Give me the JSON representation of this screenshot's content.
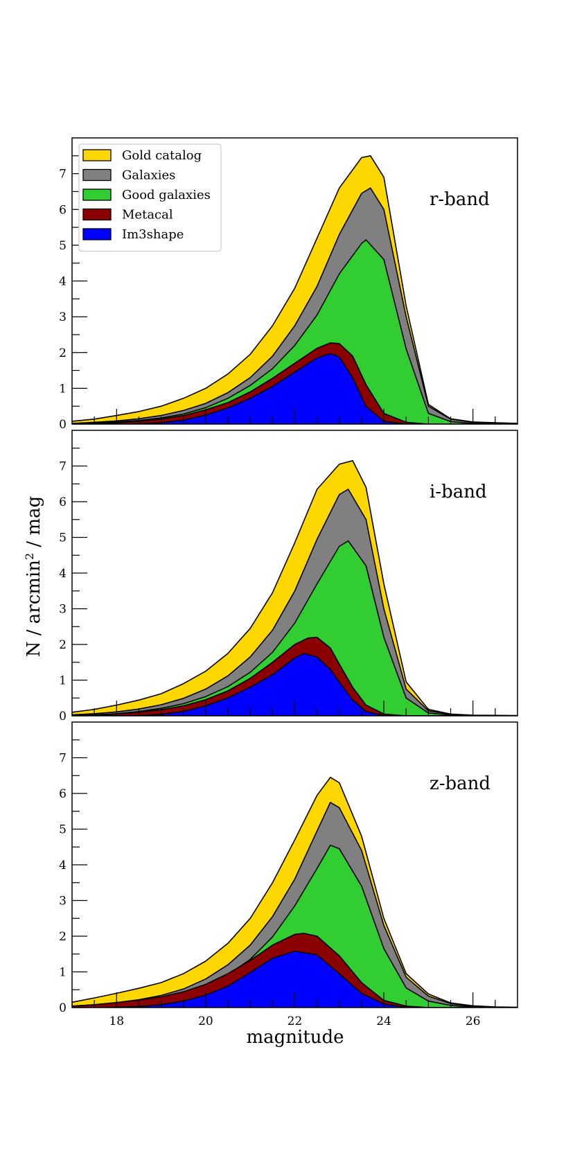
{
  "chart_data": {
    "type": "area",
    "xlabel": "magnitude",
    "ylabel": "N / arcmin² / mag",
    "ylabel_parts": {
      "prefix": "N / arcmin",
      "sup": "2",
      "suffix": " / mag"
    },
    "xlim": [
      17,
      27
    ],
    "ylim": [
      0,
      8
    ],
    "x_ticks": [
      18,
      20,
      22,
      24,
      26
    ],
    "y_ticks": [
      0,
      1,
      2,
      3,
      4,
      5,
      6,
      7
    ],
    "legend": {
      "position": "top-left",
      "entries": [
        "Gold catalog",
        "Galaxies",
        "Good galaxies",
        "Metacal",
        "Im3shape"
      ]
    },
    "colors": {
      "Gold catalog": "#FFD700",
      "Galaxies": "#808080",
      "Good galaxies": "#32CD32",
      "Metacal": "#8B0000",
      "Im3shape": "#0000FF"
    },
    "panels": [
      {
        "band": "r-band",
        "series": [
          {
            "name": "Gold catalog",
            "x": [
              17,
              17.5,
              18,
              18.5,
              19,
              19.5,
              20,
              20.5,
              21,
              21.5,
              22,
              22.5,
              23,
              23.5,
              23.7,
              24,
              24.5,
              25,
              25.5,
              26,
              27
            ],
            "values": [
              0.08,
              0.14,
              0.24,
              0.35,
              0.5,
              0.72,
              1.0,
              1.4,
              1.95,
              2.75,
              3.8,
              5.2,
              6.6,
              7.45,
              7.5,
              6.9,
              3.3,
              0.55,
              0.15,
              0.06,
              0.02
            ]
          },
          {
            "name": "Galaxies",
            "x": [
              17,
              17.5,
              18,
              18.5,
              19,
              19.5,
              20,
              20.5,
              21,
              21.5,
              22,
              22.5,
              23,
              23.5,
              23.7,
              24,
              24.5,
              25,
              25.5,
              26,
              27
            ],
            "values": [
              0.02,
              0.05,
              0.09,
              0.15,
              0.24,
              0.38,
              0.58,
              0.88,
              1.3,
              1.9,
              2.75,
              3.85,
              5.3,
              6.45,
              6.6,
              6.0,
              3.0,
              0.5,
              0.14,
              0.05,
              0.02
            ]
          },
          {
            "name": "Good galaxies",
            "x": [
              17,
              17.5,
              18,
              18.5,
              19,
              19.5,
              20,
              20.5,
              21,
              21.5,
              22,
              22.5,
              23,
              23.5,
              23.6,
              24,
              24.5,
              25,
              25.5,
              26,
              27
            ],
            "values": [
              0.01,
              0.03,
              0.06,
              0.1,
              0.17,
              0.28,
              0.46,
              0.72,
              1.08,
              1.55,
              2.2,
              3.05,
              4.2,
              5.05,
              5.15,
              4.6,
              2.1,
              0.3,
              0.07,
              0.02,
              0.01
            ]
          },
          {
            "name": "Metacal",
            "x": [
              17,
              17.5,
              18,
              18.5,
              19,
              19.5,
              20,
              20.5,
              21,
              21.5,
              22,
              22.5,
              22.8,
              23,
              23.3,
              23.6,
              24,
              24.5,
              25,
              27
            ],
            "values": [
              0.0,
              0.02,
              0.04,
              0.08,
              0.14,
              0.24,
              0.4,
              0.6,
              0.9,
              1.28,
              1.7,
              2.12,
              2.27,
              2.25,
              1.9,
              1.1,
              0.3,
              0.05,
              0.0,
              0.0
            ]
          },
          {
            "name": "Im3shape",
            "x": [
              17,
              17.5,
              18,
              18.5,
              19,
              19.5,
              20,
              20.5,
              21,
              21.5,
              22,
              22.5,
              22.8,
              23,
              23.3,
              23.6,
              24,
              24.5,
              25,
              27
            ],
            "values": [
              0.0,
              0.0,
              0.0,
              0.01,
              0.04,
              0.11,
              0.25,
              0.45,
              0.72,
              1.05,
              1.45,
              1.85,
              1.97,
              1.88,
              1.3,
              0.5,
              0.08,
              0.0,
              0.0,
              0.0
            ]
          }
        ]
      },
      {
        "band": "i-band",
        "series": [
          {
            "name": "Gold catalog",
            "x": [
              17,
              17.5,
              18,
              18.5,
              19,
              19.5,
              20,
              20.5,
              21,
              21.5,
              22,
              22.5,
              23,
              23.3,
              23.6,
              24,
              24.5,
              25,
              25.5,
              26,
              27
            ],
            "values": [
              0.1,
              0.18,
              0.3,
              0.44,
              0.62,
              0.9,
              1.25,
              1.75,
              2.45,
              3.45,
              4.85,
              6.35,
              7.05,
              7.15,
              6.4,
              3.7,
              0.95,
              0.18,
              0.05,
              0.02,
              0.01
            ]
          },
          {
            "name": "Galaxies",
            "x": [
              17,
              17.5,
              18,
              18.5,
              19,
              19.5,
              20,
              20.5,
              21,
              21.5,
              22,
              22.5,
              23,
              23.2,
              23.6,
              24,
              24.5,
              25,
              25.5,
              26,
              27
            ],
            "values": [
              0.03,
              0.06,
              0.11,
              0.19,
              0.31,
              0.49,
              0.75,
              1.12,
              1.65,
              2.4,
              3.5,
              4.95,
              6.2,
              6.35,
              5.5,
              3.0,
              0.75,
              0.14,
              0.04,
              0.01,
              0.0
            ]
          },
          {
            "name": "Good galaxies",
            "x": [
              17,
              17.5,
              18,
              18.5,
              19,
              19.5,
              20,
              20.5,
              21,
              21.5,
              22,
              22.5,
              23,
              23.2,
              23.6,
              24,
              24.5,
              25,
              25.5,
              26,
              27
            ],
            "values": [
              0.01,
              0.03,
              0.06,
              0.12,
              0.21,
              0.34,
              0.54,
              0.82,
              1.22,
              1.78,
              2.6,
              3.7,
              4.75,
              4.9,
              4.2,
              2.2,
              0.5,
              0.08,
              0.02,
              0.01,
              0.0
            ]
          },
          {
            "name": "Metacal",
            "x": [
              17,
              17.5,
              18,
              18.5,
              19,
              19.5,
              20,
              20.5,
              21,
              21.5,
              22,
              22.3,
              22.5,
              22.8,
              23,
              23.3,
              23.6,
              24,
              24.5,
              27
            ],
            "values": [
              0.0,
              0.02,
              0.05,
              0.1,
              0.17,
              0.28,
              0.45,
              0.7,
              1.05,
              1.5,
              2.0,
              2.18,
              2.2,
              1.9,
              1.45,
              0.8,
              0.3,
              0.05,
              0.0,
              0.0
            ]
          },
          {
            "name": "Im3shape",
            "x": [
              17,
              17.5,
              18,
              18.5,
              19,
              19.5,
              20,
              20.5,
              21,
              21.5,
              22,
              22.2,
              22.5,
              22.8,
              23,
              23.3,
              23.6,
              24,
              24.5,
              27
            ],
            "values": [
              0.0,
              0.0,
              0.0,
              0.01,
              0.04,
              0.12,
              0.28,
              0.5,
              0.8,
              1.15,
              1.62,
              1.75,
              1.65,
              1.3,
              0.95,
              0.45,
              0.12,
              0.01,
              0.0,
              0.0
            ]
          }
        ]
      },
      {
        "band": "z-band",
        "series": [
          {
            "name": "Gold catalog",
            "x": [
              17,
              17.5,
              18,
              18.5,
              19,
              19.5,
              20,
              20.5,
              21,
              21.5,
              22,
              22.5,
              22.8,
              23,
              23.5,
              24,
              24.5,
              25,
              25.5,
              26,
              26.5,
              27
            ],
            "values": [
              0.15,
              0.27,
              0.4,
              0.54,
              0.7,
              0.95,
              1.3,
              1.8,
              2.5,
              3.5,
              4.7,
              5.95,
              6.45,
              6.3,
              4.8,
              2.5,
              0.95,
              0.38,
              0.13,
              0.05,
              0.02,
              0.01
            ]
          },
          {
            "name": "Galaxies",
            "x": [
              17,
              17.5,
              18,
              18.5,
              19,
              19.5,
              20,
              20.5,
              21,
              21.5,
              22,
              22.5,
              22.8,
              23,
              23.5,
              24,
              24.5,
              25,
              25.5,
              26,
              26.5,
              27
            ],
            "values": [
              0.04,
              0.08,
              0.14,
              0.22,
              0.34,
              0.52,
              0.8,
              1.2,
              1.75,
              2.55,
              3.6,
              4.95,
              5.75,
              5.6,
              4.4,
              2.3,
              0.85,
              0.32,
              0.11,
              0.04,
              0.01,
              0.0
            ]
          },
          {
            "name": "Good galaxies",
            "x": [
              17,
              17.5,
              18,
              18.5,
              19,
              19.5,
              20,
              20.5,
              21,
              21.5,
              22,
              22.5,
              22.8,
              23,
              23.5,
              24,
              24.5,
              25,
              25.5,
              26,
              26.5,
              27
            ],
            "values": [
              0.02,
              0.05,
              0.09,
              0.15,
              0.24,
              0.38,
              0.6,
              0.92,
              1.35,
              1.98,
              2.85,
              3.9,
              4.55,
              4.45,
              3.4,
              1.65,
              0.55,
              0.18,
              0.06,
              0.02,
              0.01,
              0.0
            ]
          },
          {
            "name": "Metacal",
            "x": [
              17,
              17.5,
              18,
              18.5,
              19,
              19.5,
              20,
              20.5,
              21,
              21.5,
              22,
              22.2,
              22.5,
              23,
              23.5,
              24,
              24.5,
              25,
              27
            ],
            "values": [
              0.04,
              0.08,
              0.14,
              0.21,
              0.3,
              0.44,
              0.65,
              0.95,
              1.32,
              1.75,
              2.05,
              2.08,
              2.0,
              1.45,
              0.7,
              0.2,
              0.04,
              0.0,
              0.0
            ]
          },
          {
            "name": "Im3shape",
            "x": [
              17,
              17.5,
              18,
              18.5,
              19,
              19.5,
              20,
              20.5,
              21,
              21.5,
              22,
              22.5,
              23,
              23.5,
              24,
              24.5,
              25,
              27
            ],
            "values": [
              0.0,
              0.0,
              0.01,
              0.03,
              0.08,
              0.18,
              0.35,
              0.6,
              0.98,
              1.38,
              1.58,
              1.48,
              0.95,
              0.4,
              0.1,
              0.01,
              0.0,
              0.0
            ]
          }
        ]
      }
    ]
  }
}
